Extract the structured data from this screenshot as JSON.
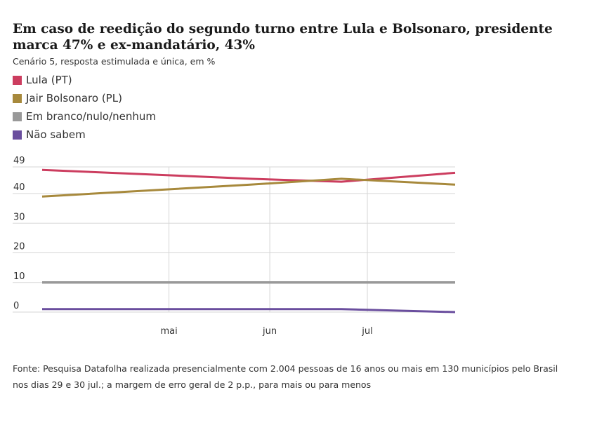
{
  "title": "Em caso de reedição do segundo turno entre Lula e Bolsonaro, presidente marca 47% e ex-mandatário, 43%",
  "subtitle": "Cenário 5, resposta estimulada e única, em %",
  "legend": [
    {
      "label": "Lula (PT)",
      "color": "#cc3d5f"
    },
    {
      "label": "Jair Bolsonaro (PL)",
      "color": "#a7893c"
    },
    {
      "label": "Em branco/nulo/nenhum",
      "color": "#999999"
    },
    {
      "label": "Não sabem",
      "color": "#6a4e9e"
    }
  ],
  "source": "Fonte: Pesquisa Datafolha realizada presencialmente com 2.004 pessoas de 16 anos ou mais em 130 municípios pelo Brasil nos dias 29 e 30 jul.; a margem de erro geral de 2 p.p., para mais ou para menos",
  "chart_data": {
    "type": "line",
    "x": [
      "2022-03-23",
      "2022-05-26",
      "2022-06-23",
      "2022-07-28"
    ],
    "x_ticks": [
      {
        "label": "mai",
        "date": "2022-05-01"
      },
      {
        "label": "jun",
        "date": "2022-06-01"
      },
      {
        "label": "jul",
        "date": "2022-07-01"
      }
    ],
    "y_ticks": [
      0,
      10,
      20,
      30,
      40,
      49
    ],
    "ylim": [
      0,
      49
    ],
    "grid": true,
    "series": [
      {
        "name": "Lula (PT)",
        "color": "#cc3d5f",
        "values": [
          48,
          45,
          44,
          47
        ]
      },
      {
        "name": "Jair Bolsonaro (PL)",
        "color": "#a7893c",
        "values": [
          39,
          43,
          45,
          43
        ]
      },
      {
        "name": "Em branco/nulo/nenhum",
        "color": "#999999",
        "values": [
          10,
          10,
          10,
          10
        ]
      },
      {
        "name": "Não sabem",
        "color": "#6a4e9e",
        "values": [
          1,
          1,
          1,
          0
        ]
      }
    ]
  }
}
